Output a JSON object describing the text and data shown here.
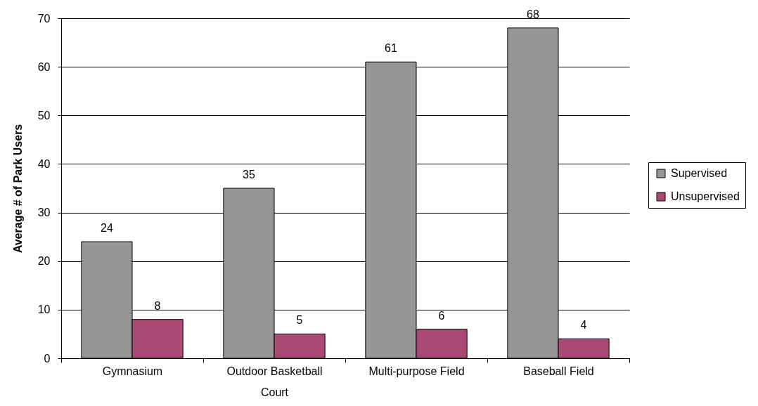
{
  "chart_data": {
    "type": "bar",
    "ylabel": "Average # of Park Users",
    "categories": [
      "Gymnasium",
      "Outdoor Basketball Court",
      "Multi-purpose Field",
      "Baseball Field"
    ],
    "series": [
      {
        "name": "Supervised",
        "color": "#969696",
        "values": [
          24,
          35,
          61,
          68
        ]
      },
      {
        "name": "Unsupervised",
        "color": "#a94975",
        "values": [
          8,
          5,
          6,
          4
        ]
      }
    ],
    "ylim": [
      0,
      70
    ],
    "yticks": [
      0,
      10,
      20,
      30,
      40,
      50,
      60,
      70
    ],
    "grid": "y",
    "legend": "right",
    "data_labels": true
  }
}
